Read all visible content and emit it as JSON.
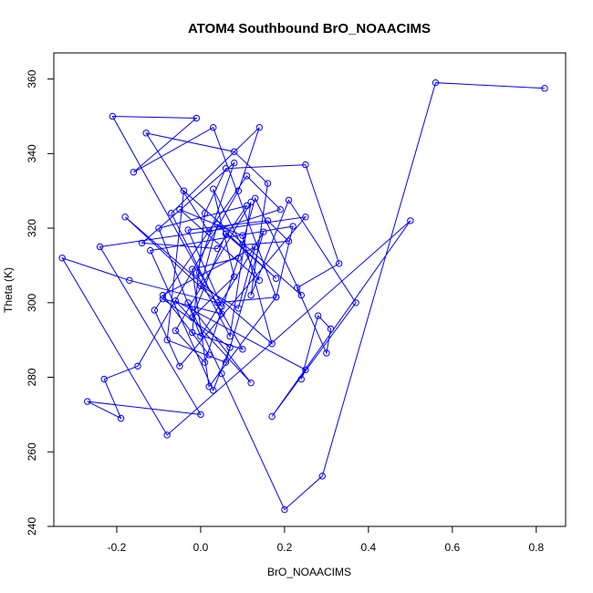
{
  "chart_data": {
    "type": "line",
    "title": "ATOM4 Southbound BrO_NOAACIMS",
    "xlabel": "BrO_NOAACIMS",
    "ylabel": "Theta (K)",
    "xlim": [
      -0.35,
      0.87
    ],
    "ylim": [
      240,
      367
    ],
    "xticks": [
      -0.2,
      0.0,
      0.2,
      0.4,
      0.6,
      0.8
    ],
    "xtick_labels": [
      "-0.2",
      "0.0",
      "0.2",
      "0.4",
      "0.6",
      "0.8"
    ],
    "yticks": [
      240,
      260,
      280,
      300,
      320,
      340,
      360
    ],
    "ytick_labels": [
      "240",
      "260",
      "280",
      "300",
      "320",
      "340",
      "360"
    ],
    "grid": false,
    "series": [
      {
        "color": "#0000ff",
        "marker": "open-circle",
        "x": [
          0.82,
          0.56,
          0.29,
          0.2,
          0.05,
          -0.03,
          0.12,
          -0.06,
          0.25,
          0.24,
          0.28,
          0.31,
          0.3,
          0.23,
          0.33,
          0.25,
          0.06,
          0.01,
          -0.02,
          0.1,
          -0.21,
          -0.01,
          -0.16,
          0.03,
          0.18,
          0.04,
          -0.17,
          -0.33,
          -0.08,
          0.5,
          0.17,
          0.37,
          0.21,
          0.12,
          0.16,
          0.08,
          -0.13,
          0.02,
          0.19,
          0.11,
          -0.11,
          -0.05,
          0.25,
          -0.24,
          0.0,
          -0.27,
          -0.19,
          -0.23,
          -0.15,
          0.09,
          0.14,
          -0.07,
          0.05,
          -0.09,
          0.07,
          0.03,
          -0.12,
          0.22,
          0.18,
          0.02,
          -0.02,
          0.09,
          0.13,
          0.24,
          -0.04,
          -0.08,
          0.06,
          0.15,
          0.0,
          -0.1,
          0.11,
          0.04,
          -0.14,
          0.08,
          -0.01,
          0.07,
          0.12,
          -0.06,
          0.01,
          0.1,
          0.21,
          0.16,
          -0.03,
          0.05,
          -0.18,
          0.17,
          0.1,
          -0.05,
          0.14,
          0.03,
          0.08,
          -0.02,
          0.06,
          0.18,
          0.04,
          0.0,
          0.09,
          0.13,
          -0.09,
          0.02
        ],
        "y": [
          357.5,
          359,
          253.5,
          244.5,
          281,
          300,
          278.5,
          300.5,
          282,
          279.5,
          296.5,
          293,
          286.5,
          304,
          310.5,
          337,
          336,
          324,
          292,
          287.5,
          350,
          349.5,
          335,
          347,
          301.5,
          300,
          306,
          312,
          264.5,
          322,
          269.5,
          300,
          327.5,
          302,
          332,
          340.5,
          345.5,
          319,
          325,
          334,
          298,
          283,
          323,
          315,
          270,
          273.5,
          269,
          279.5,
          283,
          330,
          347,
          324,
          297,
          301,
          288,
          276.5,
          314,
          320.5,
          301.5,
          277.5,
          309,
          312,
          328,
          302,
          330,
          290,
          284,
          319,
          291,
          320,
          326,
          314.5,
          316,
          337.5,
          308,
          291,
          327,
          292.5,
          284,
          315.5,
          316.5,
          322,
          319.5,
          299,
          323,
          289,
          318,
          325,
          306,
          330.5,
          307,
          296,
          318.5,
          306.5,
          321,
          304.5,
          298.5,
          315,
          302,
          286
        ]
      }
    ]
  }
}
